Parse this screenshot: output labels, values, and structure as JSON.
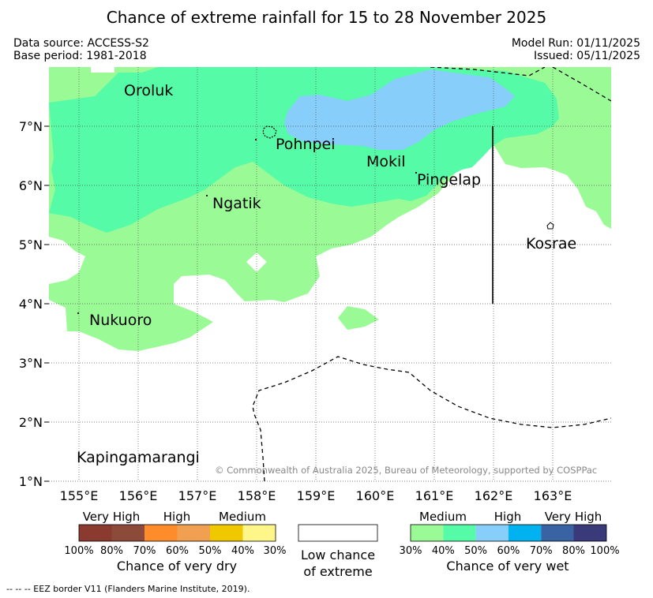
{
  "title": "Chance of extreme rainfall for 15 to 28 November 2025",
  "data_source": "Data source: ACCESS-S2",
  "base_period": "Base period: 1981-2018",
  "model_run": "Model Run: 01/11/2025",
  "issued": "Issued: 05/11/2025",
  "lat_labels": [
    "7°N",
    "6°N",
    "5°N",
    "4°N",
    "3°N",
    "2°N",
    "1°N"
  ],
  "lon_labels": [
    "155°E",
    "156°E",
    "157°E",
    "158°E",
    "159°E",
    "160°E",
    "161°E",
    "162°E",
    "163°E"
  ],
  "places": {
    "oroluk": "Oroluk",
    "pohnpei": "Pohnpei",
    "mokil": "Mokil",
    "pingelap": "Pingelap",
    "ngatik": "Ngatik",
    "kosrae": "Kosrae",
    "nukuoro": "Nukuoro",
    "kapingamarangi": "Kapingamarangi"
  },
  "copyright": "© Commonwealth of Australia 2025, Bureau of Meteorology, supported by COSPPac",
  "legend_dry": {
    "categories": [
      "Very High",
      "High",
      "Medium"
    ],
    "ticks": [
      "100%",
      "80%",
      "70%",
      "60%",
      "50%",
      "40%",
      "30%"
    ],
    "colors": [
      "#8b3a30",
      "#8b4a3a",
      "#ff8c2a",
      "#f0a050",
      "#f0c800",
      "#fff68a"
    ],
    "title": "Chance of very dry"
  },
  "legend_low": {
    "line1": "Low chance",
    "line2": "of extreme"
  },
  "legend_wet": {
    "categories": [
      "Medium",
      "High",
      "Very High"
    ],
    "ticks": [
      "30%",
      "40%",
      "50%",
      "60%",
      "70%",
      "80%",
      "100%"
    ],
    "colors": [
      "#9afa96",
      "#55fba6",
      "#87cefa",
      "#00b3f0",
      "#3a63a3",
      "#3a3a7a"
    ],
    "title": "Chance of very wet"
  },
  "footnote": "-- -- -- EEZ border V11 (Flanders Marine Institute, 2019).",
  "colors": {
    "medium_wet": "#9afa96",
    "medium_high_wet": "#55fba6",
    "high_wet": "#87cefa"
  }
}
